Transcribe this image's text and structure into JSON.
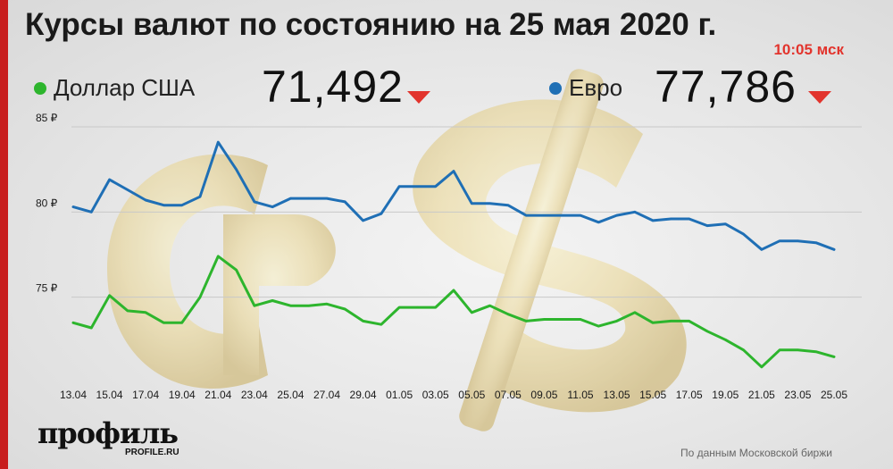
{
  "title": "Курсы валют по состоянию на 25 мая 2020 г.",
  "time": "10:05 мск",
  "usd": {
    "name": "Доллар США",
    "value": "71,492",
    "color": "#2db52d",
    "trend": "down"
  },
  "eur": {
    "name": "Евро",
    "value": "77,786",
    "color": "#1f6fb5",
    "trend": "down"
  },
  "colors": {
    "accent_red": "#e2342d",
    "side_bar": "#c81e1e"
  },
  "logo": {
    "main": "профиль",
    "sub": "PROFILE.RU"
  },
  "source": "По данным Московской биржи",
  "chart_data": {
    "type": "line",
    "ylim": [
      70,
      85
    ],
    "yticks": [
      75,
      80,
      85
    ],
    "ytick_labels": [
      "75 ₽",
      "80 ₽",
      "85 ₽"
    ],
    "x_tick_labels": [
      "13.04",
      "15.04",
      "17.04",
      "19.04",
      "21.04",
      "23.04",
      "25.04",
      "27.04",
      "29.04",
      "01.05",
      "03.05",
      "05.05",
      "07.05",
      "09.05",
      "11.05",
      "13.05",
      "15.05",
      "17.05",
      "19.05",
      "21.05",
      "23.05",
      "25.05"
    ],
    "grid": "horizontal",
    "series": [
      {
        "key": "eur",
        "color": "#1f6fb5",
        "values": [
          80.3,
          80.0,
          81.9,
          81.3,
          80.7,
          80.4,
          80.4,
          80.9,
          84.1,
          82.5,
          80.6,
          80.3,
          80.8,
          80.8,
          80.8,
          80.6,
          79.5,
          79.9,
          81.5,
          81.5,
          81.5,
          82.4,
          80.5,
          80.5,
          80.4,
          79.8,
          79.8,
          79.8,
          79.8,
          79.4,
          79.8,
          80.0,
          79.5,
          79.6,
          79.6,
          79.2,
          79.3,
          78.7,
          77.8,
          78.3,
          78.3,
          78.2,
          77.8
        ]
      },
      {
        "key": "usd",
        "color": "#2db52d",
        "values": [
          73.5,
          73.2,
          75.1,
          74.2,
          74.1,
          73.5,
          73.5,
          75.0,
          77.4,
          76.6,
          74.5,
          74.8,
          74.5,
          74.5,
          74.6,
          74.3,
          73.6,
          73.4,
          74.4,
          74.4,
          74.4,
          75.4,
          74.1,
          74.5,
          74.0,
          73.6,
          73.7,
          73.7,
          73.7,
          73.3,
          73.6,
          74.1,
          73.5,
          73.6,
          73.6,
          73.0,
          72.5,
          71.9,
          70.9,
          71.9,
          71.9,
          71.8,
          71.5
        ]
      }
    ]
  }
}
